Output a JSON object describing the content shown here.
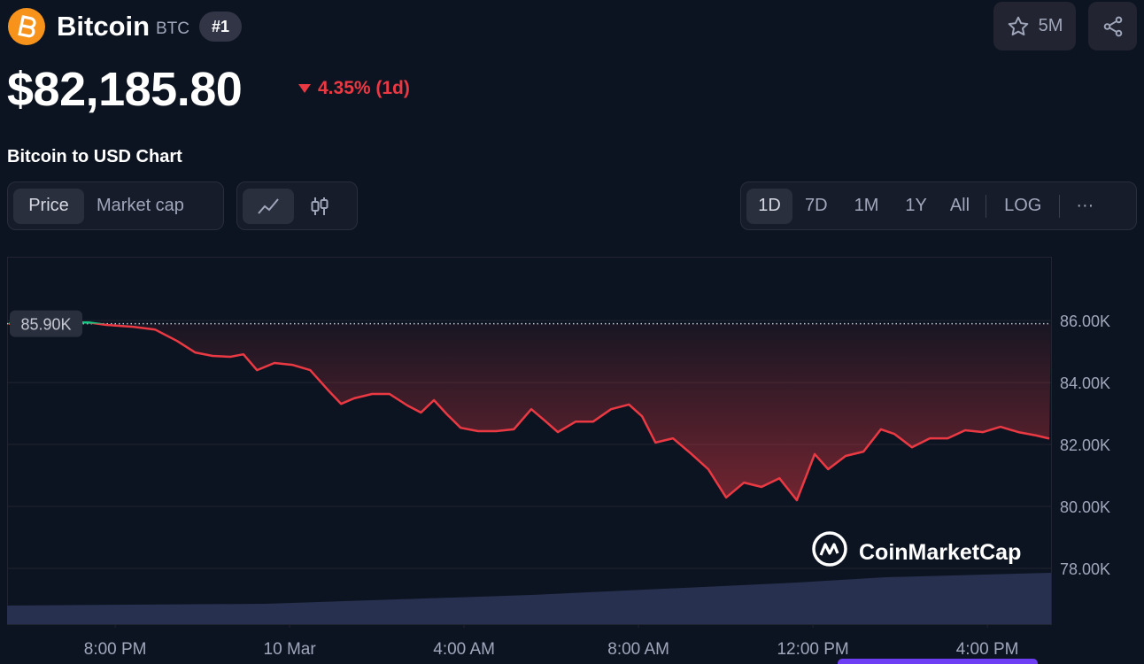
{
  "header": {
    "name": "Bitcoin",
    "symbol": "BTC",
    "rank": "#1",
    "watchlist": "5M",
    "price": "$82,185.80",
    "change": "4.35% (1d)"
  },
  "controls": {
    "title": "Bitcoin to USD Chart",
    "tabs": [
      "Price",
      "Market cap"
    ],
    "ranges": [
      "1D",
      "7D",
      "1M",
      "1Y",
      "All"
    ],
    "log": "LOG",
    "more": "···"
  },
  "chart_data": {
    "type": "line",
    "watermark": "CoinMarketCap",
    "x": [
      17.56,
      18.58,
      19.39,
      19.8,
      20.41,
      20.91,
      21.42,
      21.83,
      22.23,
      22.64,
      22.94,
      23.25,
      23.65,
      24.06,
      24.47,
      24.87,
      25.18,
      25.48,
      25.89,
      26.29,
      26.7,
      27.01,
      27.31,
      27.61,
      27.92,
      28.32,
      28.73,
      29.14,
      29.54,
      29.85,
      30.15,
      30.56,
      30.96,
      31.37,
      31.78,
      32.08,
      32.39,
      32.79,
      33.2,
      33.6,
      34.01,
      34.42,
      34.82,
      35.23,
      35.63,
      36.04,
      36.35,
      36.75,
      37.16,
      37.56,
      37.87,
      38.27,
      38.68,
      39.09,
      39.49,
      39.9,
      40.3,
      40.71,
      41.12,
      41.42
    ],
    "values": [
      85900,
      85940,
      85940,
      85860,
      85800,
      85710,
      85340,
      84970,
      84860,
      84830,
      84910,
      84400,
      84630,
      84570,
      84400,
      83770,
      83310,
      83490,
      83630,
      83630,
      83260,
      83030,
      83430,
      82970,
      82540,
      82430,
      82430,
      82490,
      83140,
      82770,
      82400,
      82740,
      82740,
      83140,
      83290,
      82910,
      82060,
      82200,
      81710,
      81200,
      80290,
      80770,
      80630,
      80910,
      80200,
      81690,
      81200,
      81630,
      81770,
      82490,
      82340,
      81910,
      82200,
      82200,
      82460,
      82400,
      82570,
      82400,
      82290,
      82190
    ],
    "color": "#ea3943",
    "color_up": "#16c784",
    "reference": {
      "value": 85900,
      "label": "85.90K"
    },
    "xlim": [
      17.52,
      41.46
    ],
    "xticks": [
      {
        "value": 20,
        "label": "8:00 PM"
      },
      {
        "value": 24,
        "label": "10 Mar"
      },
      {
        "value": 28,
        "label": "4:00 AM"
      },
      {
        "value": 32,
        "label": "8:00 AM"
      },
      {
        "value": 36,
        "label": "12:00 PM"
      },
      {
        "value": 40,
        "label": "4:00 PM"
      }
    ],
    "ylim": [
      76200,
      88060
    ],
    "yticks": [
      {
        "value": 78000,
        "label": "78.00K"
      },
      {
        "value": 80000,
        "label": "80.00K"
      },
      {
        "value": 82000,
        "label": "82.00K"
      },
      {
        "value": 84000,
        "label": "84.00K"
      },
      {
        "value": 86000,
        "label": "86.00K"
      }
    ],
    "grid": true
  }
}
